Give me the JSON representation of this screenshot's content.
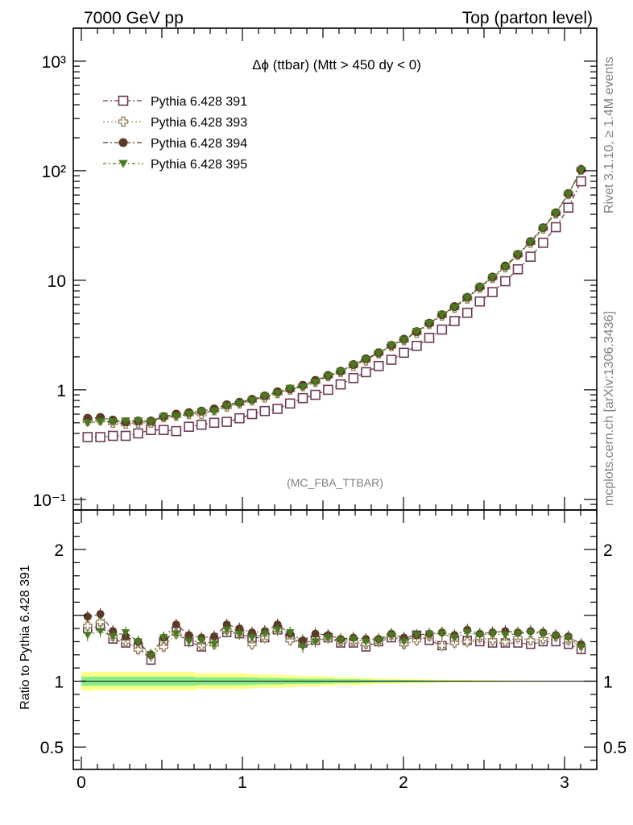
{
  "header": {
    "left": "7000 GeV pp",
    "right": "Top (parton level)"
  },
  "side_labels": {
    "rivet": "Rivet 3.1.10, ≥ 1.4M events",
    "mcplots": "mcplots.cern.ch [arXiv:1306.3436]"
  },
  "chart_data": {
    "type": "scatter",
    "title": "Δϕ (ttbar) (Mtt > 450 dy < 0)",
    "watermark": "(MC_FBA_TTBAR)",
    "xlim": [
      -0.05,
      3.2
    ],
    "main": {
      "yscale": "log",
      "ylim": [
        0.08,
        2000
      ],
      "ytick_labels": [
        {
          "value": 0.1,
          "label": "10⁻¹"
        },
        {
          "value": 1,
          "label": "1"
        },
        {
          "value": 10,
          "label": "10"
        },
        {
          "value": 100,
          "label": "10²"
        },
        {
          "value": 1000,
          "label": "10³"
        }
      ]
    },
    "ratio": {
      "ylabel": "Ratio to Pythia 6.428 391",
      "ylim": [
        0.33,
        2.3
      ],
      "ytick_labels": [
        {
          "value": 0.5,
          "label": "0.5"
        },
        {
          "value": 1,
          "label": "1"
        },
        {
          "value": 2,
          "label": "2"
        }
      ]
    },
    "xtick_labels": [
      {
        "value": 0,
        "label": "0"
      },
      {
        "value": 1,
        "label": "1"
      },
      {
        "value": 2,
        "label": "2"
      },
      {
        "value": 3,
        "label": "3"
      }
    ],
    "x": [
      0.039,
      0.118,
      0.196,
      0.275,
      0.353,
      0.432,
      0.511,
      0.589,
      0.668,
      0.746,
      0.825,
      0.903,
      0.982,
      1.06,
      1.139,
      1.218,
      1.296,
      1.375,
      1.453,
      1.532,
      1.61,
      1.689,
      1.767,
      1.846,
      1.925,
      2.003,
      2.082,
      2.16,
      2.239,
      2.317,
      2.396,
      2.474,
      2.553,
      2.632,
      2.71,
      2.789,
      2.867,
      2.946,
      3.024,
      3.103
    ],
    "legend_placement": "top-left",
    "series": [
      {
        "name": "Pythia 6.428 391",
        "color": "#6b3a55",
        "marker": "open-square",
        "values": [
          0.37,
          0.37,
          0.38,
          0.38,
          0.4,
          0.43,
          0.43,
          0.42,
          0.46,
          0.48,
          0.5,
          0.51,
          0.55,
          0.6,
          0.64,
          0.67,
          0.75,
          0.84,
          0.9,
          1.0,
          1.12,
          1.28,
          1.45,
          1.65,
          1.88,
          2.18,
          2.52,
          2.98,
          3.55,
          4.25,
          5.05,
          6.4,
          7.8,
          9.8,
          12.6,
          16.4,
          22.0,
          30.5,
          46.0,
          80.0
        ]
      },
      {
        "name": "Pythia 6.428 393",
        "color": "#9c8560",
        "marker": "open-cross",
        "values": [
          0.52,
          0.53,
          0.5,
          0.49,
          0.5,
          0.5,
          0.56,
          0.58,
          0.6,
          0.6,
          0.65,
          0.7,
          0.75,
          0.8,
          0.85,
          0.93,
          1.0,
          1.08,
          1.18,
          1.33,
          1.45,
          1.65,
          1.85,
          2.15,
          2.5,
          2.83,
          3.3,
          3.98,
          4.75,
          5.6,
          6.8,
          8.55,
          10.5,
          13.1,
          17.0,
          22.0,
          29.6,
          40.6,
          61.0,
          102.0
        ]
      },
      {
        "name": "Pythia 6.428 394",
        "color": "#5c3a28",
        "marker": "filled-circle",
        "values": [
          0.55,
          0.56,
          0.53,
          0.51,
          0.52,
          0.52,
          0.57,
          0.6,
          0.62,
          0.64,
          0.67,
          0.73,
          0.77,
          0.82,
          0.88,
          0.96,
          1.02,
          1.1,
          1.22,
          1.35,
          1.48,
          1.7,
          1.92,
          2.18,
          2.55,
          2.9,
          3.4,
          4.05,
          4.85,
          5.75,
          7.0,
          8.7,
          10.7,
          13.5,
          17.2,
          22.6,
          30.2,
          41.3,
          61.8,
          102.0
        ]
      },
      {
        "name": "Pythia 6.428 395",
        "color": "#4a7a1f",
        "marker": "filled-triangle-down",
        "values": [
          0.5,
          0.51,
          0.51,
          0.52,
          0.52,
          0.51,
          0.57,
          0.57,
          0.6,
          0.63,
          0.64,
          0.71,
          0.75,
          0.8,
          0.87,
          0.93,
          1.03,
          1.06,
          1.17,
          1.33,
          1.47,
          1.69,
          1.89,
          2.16,
          2.54,
          2.84,
          3.4,
          4.05,
          4.84,
          5.65,
          6.9,
          8.65,
          10.6,
          13.2,
          17.1,
          22.4,
          29.9,
          40.9,
          61.2,
          101.0
        ]
      }
    ],
    "ratio_values": [
      [
        1.4,
        1.42,
        1.32,
        1.29,
        1.26,
        1.16,
        1.3,
        1.38,
        1.3,
        1.26,
        1.3,
        1.37,
        1.36,
        1.33,
        1.33,
        1.39,
        1.33,
        1.29,
        1.31,
        1.33,
        1.29,
        1.29,
        1.26,
        1.3,
        1.33,
        1.3,
        1.35,
        1.31,
        1.27,
        1.31,
        1.31,
        1.3,
        1.29,
        1.29,
        1.29,
        1.28,
        1.3,
        1.3,
        1.28,
        1.24
      ],
      [
        1.42,
        1.45,
        1.34,
        1.3,
        1.24,
        1.2,
        1.26,
        1.36,
        1.34,
        1.27,
        1.28,
        1.39,
        1.37,
        1.28,
        1.33,
        1.39,
        1.31,
        1.29,
        1.31,
        1.33,
        1.3,
        1.3,
        1.28,
        1.3,
        1.35,
        1.28,
        1.31,
        1.34,
        1.27,
        1.29,
        1.3,
        1.33,
        1.31,
        1.3,
        1.33,
        1.31,
        1.32,
        1.34,
        1.31,
        1.27
      ],
      [
        1.49,
        1.51,
        1.38,
        1.34,
        1.3,
        1.2,
        1.33,
        1.43,
        1.35,
        1.33,
        1.34,
        1.43,
        1.4,
        1.37,
        1.38,
        1.43,
        1.36,
        1.31,
        1.36,
        1.35,
        1.32,
        1.33,
        1.32,
        1.32,
        1.36,
        1.33,
        1.35,
        1.36,
        1.37,
        1.35,
        1.39,
        1.36,
        1.37,
        1.38,
        1.37,
        1.38,
        1.37,
        1.35,
        1.34,
        1.28
      ],
      [
        1.35,
        1.38,
        1.34,
        1.37,
        1.3,
        1.19,
        1.33,
        1.36,
        1.3,
        1.31,
        1.28,
        1.39,
        1.36,
        1.33,
        1.36,
        1.39,
        1.37,
        1.26,
        1.3,
        1.33,
        1.31,
        1.32,
        1.3,
        1.31,
        1.35,
        1.3,
        1.35,
        1.36,
        1.36,
        1.33,
        1.37,
        1.35,
        1.36,
        1.35,
        1.36,
        1.37,
        1.36,
        1.34,
        1.33,
        1.26
      ]
    ],
    "ratio_bands": {
      "outer_color": "#ffff88",
      "inner_color": "#88ee88",
      "outer_halfwidth": [
        0.07,
        0.07,
        0.07,
        0.07,
        0.07,
        0.07,
        0.07,
        0.07,
        0.07,
        0.06,
        0.06,
        0.06,
        0.06,
        0.055,
        0.05,
        0.05,
        0.045,
        0.04,
        0.04,
        0.035,
        0.03,
        0.03,
        0.025,
        0.02,
        0.02,
        0.017,
        0.015,
        0.013,
        0.011,
        0.01,
        0.009,
        0.008,
        0.007,
        0.006,
        0.005,
        0.004,
        0.004,
        0.003,
        0.003,
        0.002
      ],
      "inner_halfwidth": [
        0.035,
        0.035,
        0.035,
        0.035,
        0.035,
        0.035,
        0.035,
        0.035,
        0.035,
        0.03,
        0.03,
        0.03,
        0.03,
        0.028,
        0.025,
        0.025,
        0.022,
        0.02,
        0.02,
        0.018,
        0.015,
        0.015,
        0.012,
        0.01,
        0.01,
        0.009,
        0.008,
        0.007,
        0.006,
        0.005,
        0.005,
        0.004,
        0.004,
        0.003,
        0.003,
        0.002,
        0.002,
        0.002,
        0.002,
        0.001
      ]
    }
  }
}
